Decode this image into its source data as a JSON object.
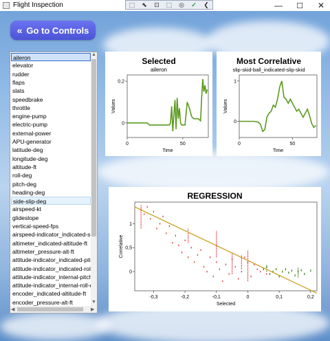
{
  "window": {
    "title": "Flight Inspection",
    "minimize": "—",
    "maximize": "☐",
    "close": "✕"
  },
  "toolbar": {
    "buttons": [
      "⬚",
      "⬉",
      "⊡",
      "⬚",
      "◎",
      "✓",
      "❮"
    ]
  },
  "go_button": {
    "arrow": "«",
    "label": "Go to Controls"
  },
  "list": {
    "selected_index": 0,
    "hover_index": 17,
    "items": [
      "aileron",
      "elevator",
      "rudder",
      "flaps",
      "slats",
      "speedbrake",
      "throttle",
      "engine-pump",
      "electric-pump",
      "external-power",
      "APU-generator",
      "latitude-deg",
      "longitude-deg",
      "altitude-ft",
      "roll-deg",
      "pitch-deg",
      "heading-deg",
      "side-slip-deg",
      "airspeed-kt",
      "glideslope",
      "vertical-speed-fps",
      "airspeed-indicator_indicated-speed",
      "altimeter_indicated-altitude-ft",
      "altimeter_pressure-alt-ft",
      "attitude-indicator_indicated-pitch-",
      "attitude-indicator_indicated-roll-de",
      "attitude-indicator_internal-pitch-de",
      "attitude-indicator_internal-roll-de",
      "encoder_indicated-altitude-ft",
      "encoder_pressure-alt-ft"
    ]
  },
  "chart_data": [
    {
      "type": "line",
      "title": "Selected",
      "subtitle": "aileron",
      "xlabel": "Time",
      "ylabel": "Values",
      "xlim": [
        0,
        73
      ],
      "ylim": [
        -0.07,
        0.23
      ],
      "xticks": [
        0,
        50
      ],
      "xtick_labels": [
        "0",
        "50"
      ],
      "yticks": [
        0,
        0.2
      ],
      "ytick_labels": [
        "0",
        "0,2"
      ],
      "color": "#5a9a1e",
      "series": [
        {
          "x": [
            0,
            18,
            20,
            38,
            39,
            40,
            41,
            42,
            43,
            44,
            45,
            46,
            47,
            48,
            49,
            50,
            51,
            52,
            54,
            56,
            58,
            60,
            62,
            64,
            66,
            67,
            68,
            69,
            70,
            71,
            72
          ],
          "y": [
            0,
            0,
            -0.01,
            -0.01,
            0,
            0.08,
            -0.04,
            0.04,
            0.11,
            -0.03,
            0.12,
            0.02,
            0.07,
            0,
            -0.01,
            -0.01,
            -0.01,
            -0.01,
            0.1,
            0.07,
            0.03,
            0.02,
            0.02,
            0.02,
            0.01,
            0.12,
            0.21,
            0.15,
            0.18,
            0.14,
            0.16
          ]
        }
      ]
    },
    {
      "type": "line",
      "title": "Most Correlative",
      "subtitle": "slip-skid-ball_indicated-slip-skid",
      "xlabel": "Time",
      "ylabel": "Values",
      "xlim": [
        0,
        73
      ],
      "ylim": [
        -0.4,
        1.15
      ],
      "xticks": [
        0,
        50
      ],
      "xtick_labels": [
        "0",
        "50"
      ],
      "yticks": [
        0,
        1
      ],
      "ytick_labels": [
        "0",
        "1"
      ],
      "color": "#5a9a1e",
      "series": [
        {
          "x": [
            0,
            14,
            18,
            20,
            22,
            24,
            26,
            28,
            30,
            32,
            34,
            36,
            38,
            40,
            42,
            44,
            46,
            48,
            50,
            52,
            54,
            56,
            58,
            60,
            62,
            64,
            66,
            68,
            70,
            72
          ],
          "y": [
            0,
            0,
            -0.02,
            -0.08,
            -0.25,
            -0.2,
            0.1,
            0.2,
            0.25,
            0.4,
            0.35,
            0.55,
            0.85,
            1.0,
            0.6,
            0.55,
            0.45,
            0.55,
            0.45,
            0.35,
            0.25,
            0.3,
            0.2,
            0.1,
            0.2,
            0.3,
            0.15,
            -0.05,
            -0.15,
            -0.1
          ]
        }
      ]
    },
    {
      "type": "scatter",
      "title": "REGRESSION",
      "xlabel": "Selected",
      "ylabel": "Correlative",
      "xlim": [
        -0.36,
        0.22
      ],
      "ylim": [
        -0.4,
        1.45
      ],
      "xticks": [
        -0.3,
        -0.2,
        -0.1,
        0,
        0.1,
        0.2
      ],
      "xtick_labels": [
        "-0,3",
        "-0,2",
        "-0,1",
        "0",
        "0,1",
        "0,2"
      ],
      "yticks": [
        0,
        0.5,
        1
      ],
      "ytick_labels": [
        "0",
        "0,5",
        "1"
      ],
      "line": {
        "x": [
          -0.36,
          0.22
        ],
        "y": [
          1.35,
          -0.45
        ],
        "color": "#c89a10"
      },
      "red": {
        "color": "#e03030",
        "x": [
          -0.34,
          -0.33,
          -0.32,
          -0.31,
          -0.3,
          -0.29,
          -0.28,
          -0.27,
          -0.26,
          -0.25,
          -0.24,
          -0.23,
          -0.22,
          -0.21,
          -0.2,
          -0.19,
          -0.18,
          -0.17,
          -0.16,
          -0.15,
          -0.14,
          -0.13,
          -0.12,
          -0.11,
          -0.1,
          -0.09,
          -0.08,
          -0.07,
          -0.06,
          -0.05,
          -0.04,
          -0.03,
          -0.02,
          -0.01,
          0,
          0.01,
          0.02,
          0.03,
          0.04,
          0.06
        ],
        "y": [
          1.3,
          1.2,
          1.35,
          1.1,
          1.25,
          0.9,
          1.0,
          1.15,
          0.8,
          0.95,
          0.6,
          0.75,
          0.55,
          0.4,
          0.65,
          0.3,
          0.5,
          0.2,
          0.35,
          0.45,
          0.1,
          0.0,
          0.3,
          -0.1,
          0.2,
          0.05,
          -0.2,
          0.15,
          -0.05,
          0.25,
          0.1,
          -0.15,
          0.0,
          0.3,
          0.2,
          -0.1,
          0.15,
          0.05,
          0.0,
          -0.05
        ]
      },
      "red_strips": [
        {
          "x": -0.34,
          "y0": 0.9,
          "y1": 1.4
        },
        {
          "x": -0.19,
          "y0": 0.6,
          "y1": 0.9
        },
        {
          "x": -0.1,
          "y0": 0.3,
          "y1": 0.85
        },
        {
          "x": -0.05,
          "y0": -0.05,
          "y1": 0.4
        },
        {
          "x": -0.02,
          "y0": 0.05,
          "y1": 0.35
        },
        {
          "x": 0.0,
          "y0": -0.2,
          "y1": 0.45
        }
      ],
      "green": {
        "color": "#3a7a10",
        "x": [
          0.05,
          0.06,
          0.07,
          0.08,
          0.09,
          0.1,
          0.11,
          0.12,
          0.13,
          0.14,
          0.15,
          0.16,
          0.17,
          0.18,
          0.2
        ],
        "y": [
          0.05,
          0.1,
          -0.05,
          0.0,
          0.05,
          -0.1,
          0.0,
          0.05,
          -0.02,
          0.02,
          -0.08,
          0.0,
          0.03,
          -0.05,
          0.02
        ]
      },
      "green_strips": [
        {
          "x": 0.06,
          "y0": 0.0,
          "y1": 0.15
        },
        {
          "x": 0.16,
          "y0": -0.12,
          "y1": 0.08
        }
      ]
    }
  ]
}
